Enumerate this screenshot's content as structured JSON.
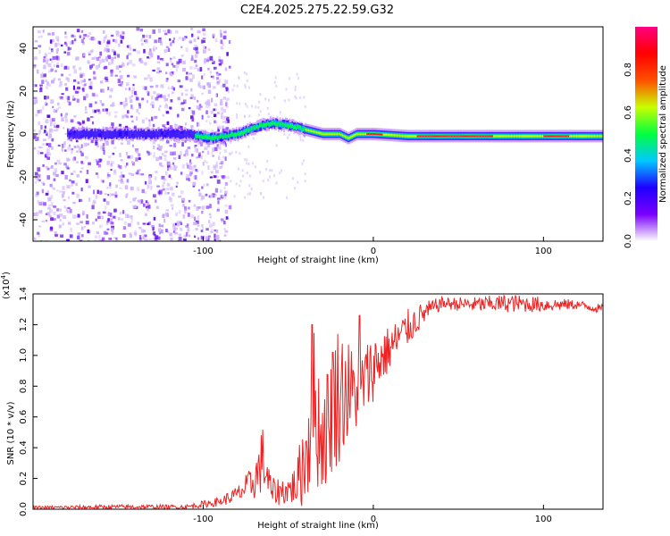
{
  "title": "C2E4.2025.275.22.59.G32",
  "chart_data": [
    {
      "type": "heatmap",
      "title": "C2E4.2025.275.22.59.G32",
      "xlabel": "Height of straight line (km)",
      "ylabel": "Frequency (Hz)",
      "xlim": [
        -200,
        135
      ],
      "ylim": [
        -50,
        50
      ],
      "x_ticks": [
        -100,
        0,
        100
      ],
      "y_ticks": [
        -40,
        -20,
        0,
        20,
        40
      ],
      "colorbar": {
        "label": "Normalized spectral amplitude",
        "range": [
          0,
          1
        ],
        "ticks": [
          "0.0",
          "0.2",
          "0.4",
          "0.6",
          "0.8"
        ],
        "colors": [
          "#ffffff",
          "#7a00ff",
          "#1e00ff",
          "#00c8ff",
          "#00ff40",
          "#c8ff00",
          "#ff5000",
          "#ff0000",
          "#ff0080"
        ]
      },
      "ridge": {
        "x": [
          -200,
          -160,
          -130,
          -110,
          -95,
          -80,
          -70,
          -60,
          -50,
          -40,
          -30,
          -20,
          -15,
          -10,
          0,
          20,
          50,
          80,
          100,
          120,
          135
        ],
        "freq": [
          0,
          0,
          0,
          0,
          -2,
          0,
          3,
          5,
          4,
          2,
          0,
          0,
          -2,
          0,
          0,
          -1,
          -1,
          -1,
          -1,
          -1,
          -1
        ]
      }
    },
    {
      "type": "line",
      "xlabel": "Height of straight line (km)",
      "ylabel": "SNR (10 * v/v)",
      "y_scale_label": "(x10",
      "y_scale_exponent": "4",
      "xlim": [
        -200,
        135
      ],
      "ylim": [
        0,
        1.4
      ],
      "x_ticks": [
        -100,
        0,
        100
      ],
      "y_ticks": [
        "0.0",
        "0.2",
        "0.4",
        "0.6",
        "0.8",
        "1.0",
        "1.2",
        "1.4"
      ],
      "color": "#ee2222",
      "envelope": {
        "x": [
          -200,
          -150,
          -110,
          -90,
          -80,
          -70,
          -65,
          -60,
          -50,
          -45,
          -40,
          -35,
          -30,
          -25,
          -20,
          -10,
          0,
          10,
          20,
          30,
          40,
          60,
          80,
          100,
          120,
          135
        ],
        "min": [
          0.0,
          0.0,
          0.0,
          0.02,
          0.04,
          0.06,
          0.1,
          0.02,
          0.03,
          0.02,
          0.0,
          0.15,
          0.1,
          0.2,
          0.3,
          0.5,
          0.7,
          0.9,
          1.05,
          1.2,
          1.3,
          1.28,
          1.28,
          1.28,
          1.3,
          1.27
        ],
        "max": [
          0.02,
          0.03,
          0.03,
          0.08,
          0.15,
          0.3,
          0.55,
          0.2,
          0.22,
          0.3,
          0.7,
          1.2,
          0.8,
          1.05,
          1.25,
          1.0,
          1.15,
          1.2,
          1.3,
          1.35,
          1.38,
          1.38,
          1.4,
          1.38,
          1.36,
          1.33
        ]
      },
      "spikes": [
        {
          "x": -36,
          "y": 1.2
        },
        {
          "x": -24,
          "y": 1.02
        },
        {
          "x": -8,
          "y": 1.26
        }
      ]
    }
  ]
}
